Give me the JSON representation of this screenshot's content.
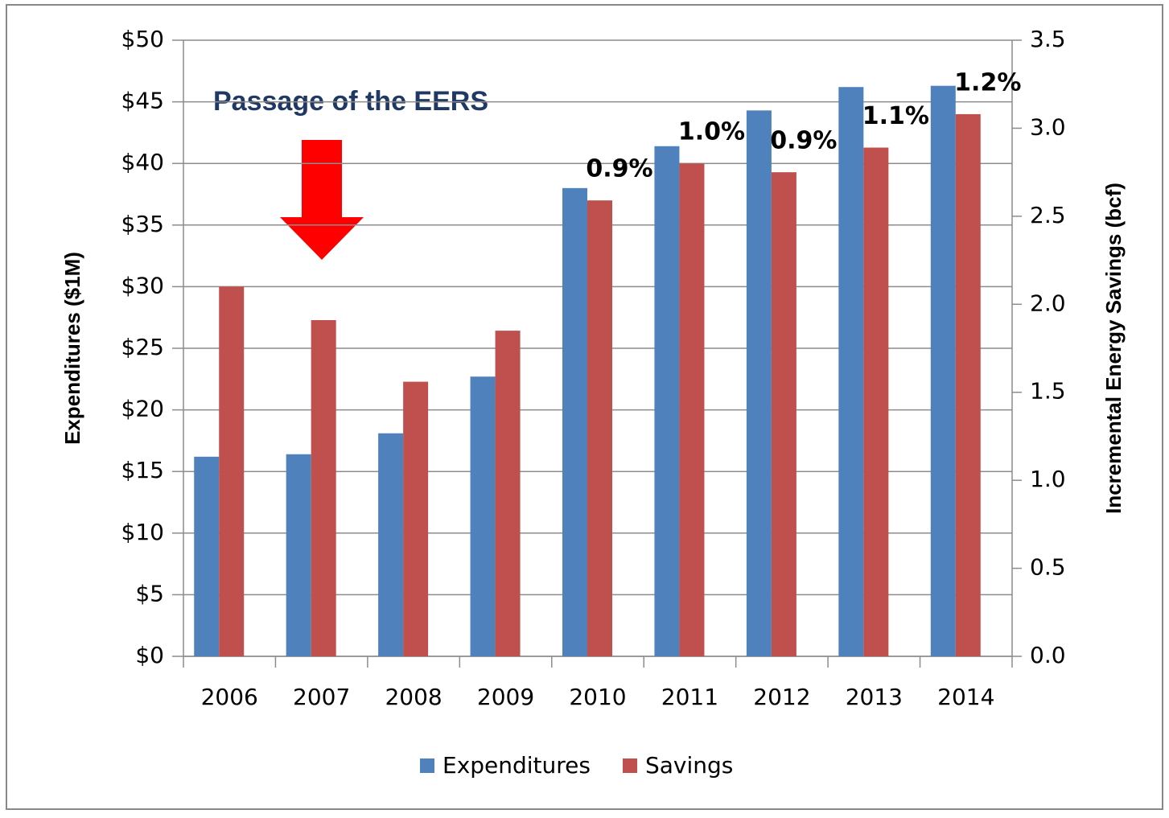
{
  "chart_data": {
    "type": "bar",
    "title": "Passage of the EERS",
    "categories": [
      "2006",
      "2007",
      "2008",
      "2009",
      "2010",
      "2011",
      "2012",
      "2013",
      "2014"
    ],
    "series": [
      {
        "name": "Expenditures",
        "color": "#4f81bd",
        "values": [
          16.2,
          16.4,
          18.1,
          22.7,
          38.0,
          41.4,
          44.3,
          46.2,
          46.3
        ]
      },
      {
        "name": "Savings",
        "color": "#c0504d",
        "axis": "y2",
        "values": [
          2.1,
          1.91,
          1.56,
          1.85,
          2.59,
          2.8,
          2.75,
          2.89,
          3.08
        ]
      }
    ],
    "ylabel": "Expenditures ($1M)",
    "y2label": "Incremental Energy Savings (bcf)",
    "ylim": [
      0,
      50
    ],
    "yticks": [
      {
        "value": 0,
        "label": "$0"
      },
      {
        "value": 5,
        "label": "$5"
      },
      {
        "value": 10,
        "label": "$10"
      },
      {
        "value": 15,
        "label": "$15"
      },
      {
        "value": 20,
        "label": "$20"
      },
      {
        "value": 25,
        "label": "$25"
      },
      {
        "value": 30,
        "label": "$30"
      },
      {
        "value": 35,
        "label": "$35"
      },
      {
        "value": 40,
        "label": "$40"
      },
      {
        "value": 45,
        "label": "$45"
      },
      {
        "value": 50,
        "label": "$50"
      }
    ],
    "y2lim": [
      0,
      3.5
    ],
    "y2ticks": [
      {
        "value": 0,
        "label": "0.0"
      },
      0.5,
      {
        "value": 1,
        "label": "1.0"
      },
      1.5,
      {
        "value": 2,
        "label": "2.0"
      },
      2.5,
      {
        "value": 3,
        "label": "3.0"
      },
      3.5
    ],
    "annotations": [
      {
        "category": "2010",
        "text": "0.9%"
      },
      {
        "category": "2011",
        "text": "1.0%"
      },
      {
        "category": "2012",
        "text": "0.9%"
      },
      {
        "category": "2013",
        "text": "1.1%"
      },
      {
        "category": "2014",
        "text": "1.2%"
      }
    ],
    "grid": true,
    "legend": "bottom"
  }
}
